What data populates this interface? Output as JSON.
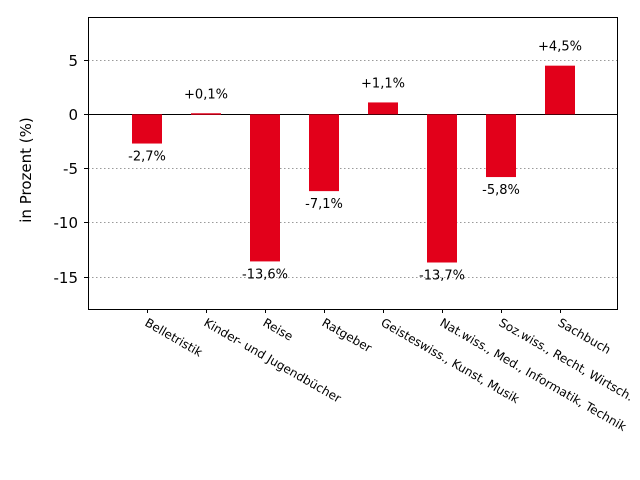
{
  "chart_data": {
    "type": "bar",
    "categories": [
      "Belletristik",
      "Kinder- und Jugendbücher",
      "Reise",
      "Ratgeber",
      "Geisteswiss., Kunst, Musik",
      "Nat.wiss., Med., Informatik, Technik",
      "Soz.wiss., Recht, Wirtsch.",
      "Sachbuch"
    ],
    "values": [
      -2.7,
      0.1,
      -13.6,
      -7.1,
      1.1,
      -13.7,
      -5.8,
      4.5
    ],
    "value_labels": [
      "-2,7%",
      "+0,1%",
      "-13,6%",
      "-7,1%",
      "+1,1%",
      "-13,7%",
      "-5,8%",
      "+4,5%"
    ],
    "ylabel": "in Prozent (%)",
    "ylim": [
      -18,
      9
    ],
    "yticks": [
      5,
      0,
      -5,
      -10,
      -15
    ],
    "ytick_labels": [
      "5",
      "0",
      "-5",
      "-10",
      "-15"
    ],
    "bar_color": "#e2001a",
    "grid": "horizontal dotted",
    "legend": "none"
  }
}
